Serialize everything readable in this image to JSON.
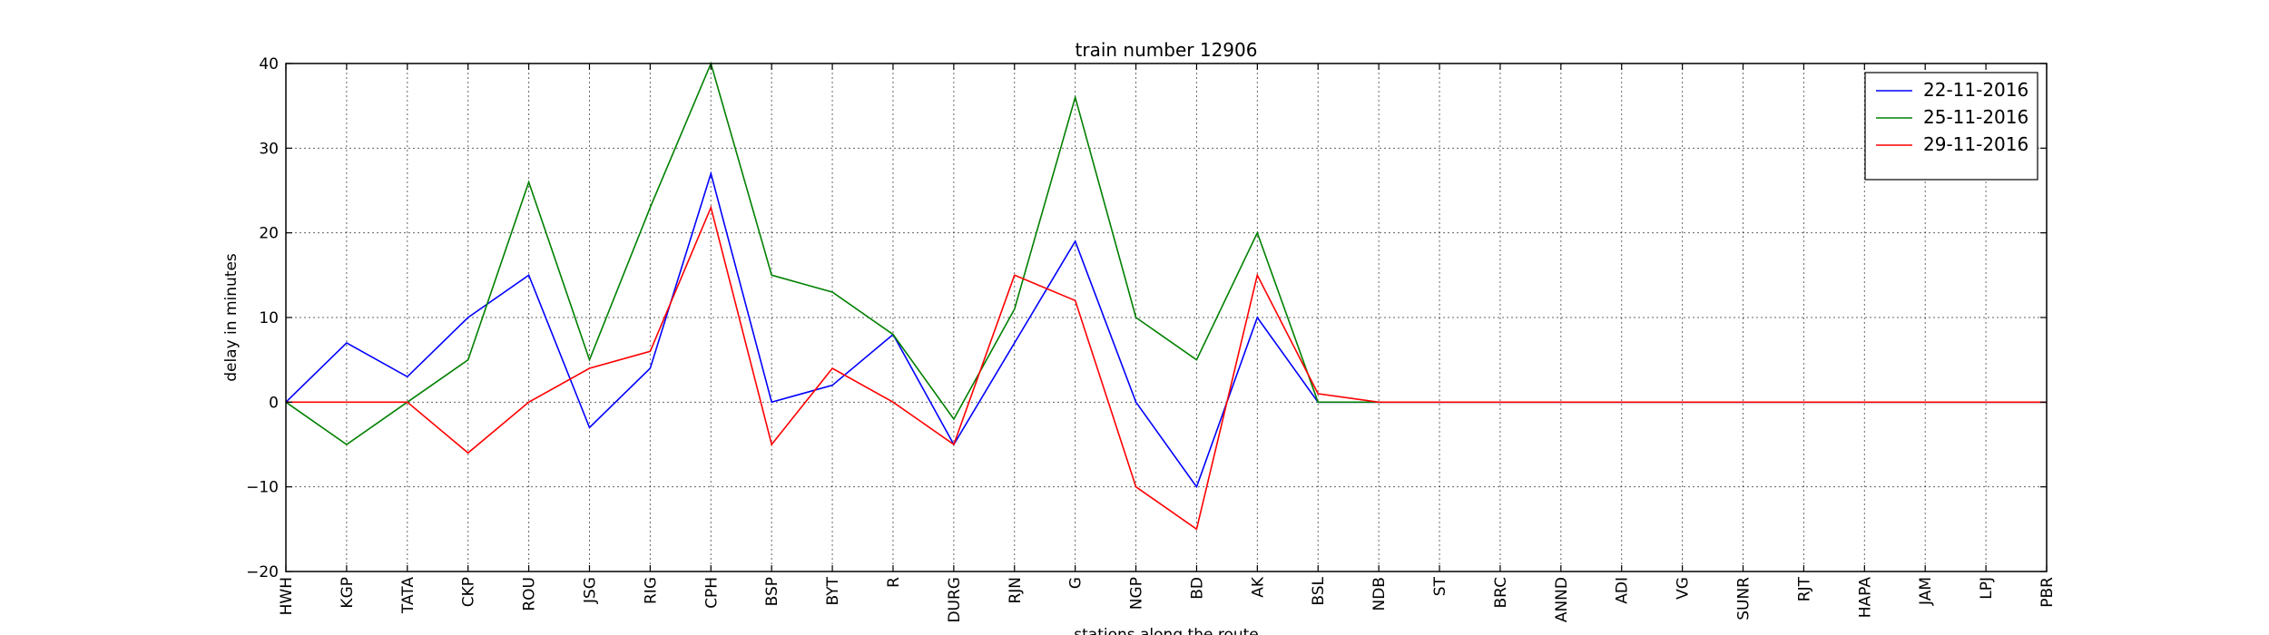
{
  "chart_data": {
    "type": "line",
    "title": "train number 12906",
    "xlabel": "stations along the route",
    "ylabel": "delay in minutes",
    "ylim": [
      -20,
      40
    ],
    "yticks": [
      -20,
      -10,
      0,
      10,
      20,
      30,
      40
    ],
    "ytick_labels": [
      "−20",
      "−10",
      "0",
      "10",
      "20",
      "30",
      "40"
    ],
    "grid": true,
    "legend_position": "top-right",
    "categories": [
      "HWH",
      "KGP",
      "TATA",
      "CKP",
      "ROU",
      "JSG",
      "RIG",
      "CPH",
      "BSP",
      "BYT",
      "R",
      "DURG",
      "RJN",
      "G",
      "NGP",
      "BD",
      "AK",
      "BSL",
      "NDB",
      "ST",
      "BRC",
      "ANND",
      "ADI",
      "VG",
      "SUNR",
      "RJT",
      "HAPA",
      "JAM",
      "LPJ",
      "PBR"
    ],
    "series": [
      {
        "name": "22-11-2016",
        "color": "#0000ff",
        "values": [
          0,
          7,
          3,
          10,
          15,
          -3,
          4,
          27,
          0,
          2,
          8,
          -5,
          7,
          19,
          0,
          -10,
          10,
          0,
          0,
          0,
          0,
          0,
          0,
          0,
          0,
          0,
          0,
          0,
          0,
          0
        ]
      },
      {
        "name": "25-11-2016",
        "color": "#008000",
        "values": [
          0,
          -5,
          0,
          5,
          26,
          5,
          23,
          40,
          15,
          13,
          8,
          -2,
          11,
          36,
          10,
          5,
          20,
          0,
          0,
          0,
          0,
          0,
          0,
          0,
          0,
          0,
          0,
          0,
          0,
          0
        ]
      },
      {
        "name": "29-11-2016",
        "color": "#ff0000",
        "values": [
          0,
          0,
          0,
          -6,
          0,
          4,
          6,
          23,
          -5,
          4,
          0,
          -5,
          15,
          12,
          -10,
          -15,
          15,
          1,
          0,
          0,
          0,
          0,
          0,
          0,
          0,
          0,
          0,
          0,
          0,
          0
        ]
      }
    ]
  }
}
